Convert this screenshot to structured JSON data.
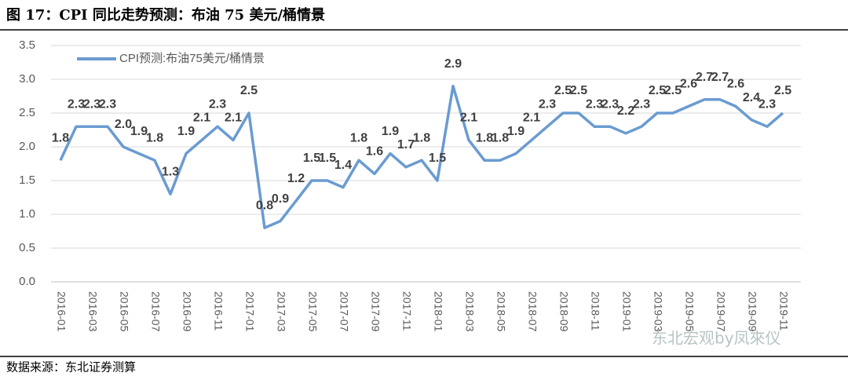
{
  "chart_data": {
    "type": "line",
    "title": "图 17：CPI 同比走势预测：布油 75 美元/桶情景",
    "source": "数据来源：东北证券测算",
    "watermark": "东北宏观by凤來仪",
    "categories": [
      "2016-01",
      null,
      "2016-03",
      null,
      "2016-05",
      null,
      "2016-07",
      null,
      "2016-09",
      null,
      "2016-11",
      null,
      "2017-01",
      null,
      "2017-03",
      null,
      "2017-05",
      null,
      "2017-07",
      null,
      "2017-09",
      null,
      "2017-11",
      null,
      "2018-01",
      null,
      "2018-03",
      null,
      "2018-05",
      null,
      "2018-07",
      null,
      "2018-09",
      null,
      "2018-11",
      null,
      "2019-01",
      null,
      "2019-03",
      null,
      "2019-05",
      null,
      "2019-07",
      null,
      "2019-09",
      null,
      "2019-11"
    ],
    "series": [
      {
        "name": "CPI预测:布油75美元/桶情景",
        "color": "#6a9bd1",
        "values": [
          1.8,
          2.3,
          2.3,
          2.3,
          2.0,
          1.9,
          1.8,
          1.3,
          1.9,
          2.1,
          2.3,
          2.1,
          2.5,
          0.8,
          0.9,
          1.2,
          1.5,
          1.5,
          1.4,
          1.8,
          1.6,
          1.9,
          1.7,
          1.8,
          1.5,
          2.9,
          2.1,
          1.8,
          1.8,
          1.9,
          2.1,
          2.3,
          2.5,
          2.5,
          2.3,
          2.3,
          2.2,
          2.3,
          2.5,
          2.5,
          2.6,
          2.7,
          2.7,
          2.6,
          2.4,
          2.3,
          2.5
        ],
        "value_labels": [
          "1.8",
          "2.3",
          "2.3",
          "2.3",
          "2.0",
          "1.9",
          "1.8",
          "1.3",
          "1.9",
          "2.1",
          "2.3",
          "2.1",
          "2.5",
          "0.8",
          "0.9",
          "1.2",
          "1.5",
          "1.5",
          "1.4",
          "1.8",
          "1.6",
          "1.9",
          "1.7",
          "1.8",
          "1.5",
          "2.9",
          "2.1",
          "1.8",
          "1.8",
          "1.9",
          "2.1",
          "2.3",
          "2.5",
          "2.5",
          "2.3",
          "2.3",
          "2.2",
          "2.3",
          "2.5",
          "2.5",
          "2.6",
          "2.7",
          "2.7",
          "2.6",
          "2.4",
          "2.3",
          "2.5"
        ]
      }
    ],
    "ylim": [
      0,
      3.5
    ],
    "yticks": [
      {
        "value": 0,
        "label": "0.0"
      },
      0.5,
      {
        "value": 1,
        "label": "1.0"
      },
      1.5,
      {
        "value": 2,
        "label": "2.0"
      },
      2.5,
      {
        "value": 3,
        "label": "3.0"
      },
      3.5
    ],
    "grid": true,
    "legend": "top-left"
  }
}
